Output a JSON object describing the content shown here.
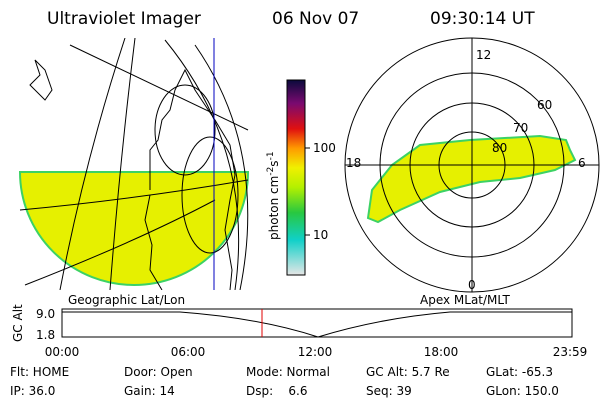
{
  "header": {
    "instrument": "Ultraviolet Imager",
    "date": "06 Nov 07",
    "time": "09:30:14 UT"
  },
  "colorbar": {
    "label": "photon cm",
    "exp1": "-2",
    "unit2": "s",
    "exp2": "-1",
    "ticks": [
      "100",
      "10"
    ]
  },
  "maps": {
    "left_label": "Geographic Lat/Lon",
    "right_label": "Apex MLat/MLT"
  },
  "polar": {
    "mlt": [
      "12",
      "18",
      "6",
      "0"
    ],
    "mlat": [
      "60",
      "70",
      "80"
    ]
  },
  "altitude": {
    "ylabel": "GC Alt",
    "yticks": [
      "9.0",
      "1.8"
    ],
    "xticks": [
      "00:00",
      "06:00",
      "12:00",
      "18:00",
      "23:59"
    ]
  },
  "footer": {
    "rows": [
      [
        "Flt: HOME",
        "Door: Open",
        "Mode: Normal",
        "GC Alt: 5.7 Re",
        "GLat: -65.3"
      ],
      [
        "IP: 36.0",
        "Gain: 14",
        "Dsp:    6.6",
        "Seq: 39",
        "GLon: 150.0"
      ]
    ]
  }
}
